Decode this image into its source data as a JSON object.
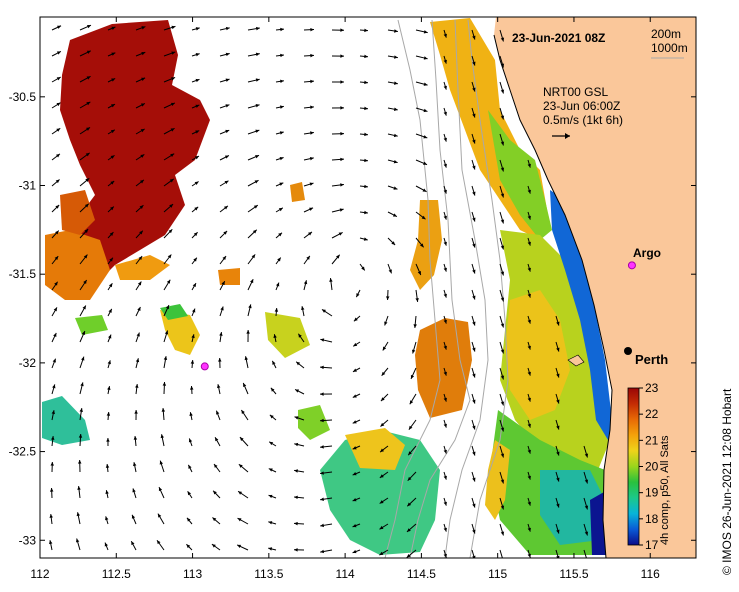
{
  "title": "23-Jun-2021 08Z",
  "depth_legend": [
    "200m",
    "1000m"
  ],
  "current_info": {
    "source": "NRT00 GSL",
    "time": "23-Jun 06:00Z",
    "scale": "0.5m/s (1kt 6h)"
  },
  "markers": [
    {
      "name": "Argo",
      "lon": 115.88,
      "lat": -31.45
    },
    {
      "name": "",
      "lon": 113.08,
      "lat": -32.02
    }
  ],
  "city": {
    "name": "Perth",
    "lon": 115.86,
    "lat": -31.95
  },
  "colorbar": {
    "title": "4h comp, p50, All Sats",
    "min": 17,
    "max": 23,
    "ticks": [
      "17",
      "18",
      "19",
      "20",
      "21",
      "22",
      "23"
    ],
    "stops": [
      "#0b0b8a",
      "#0a5ad6",
      "#07b4d8",
      "#1cc88a",
      "#29c13d",
      "#9ad51c",
      "#efd31a",
      "#f4a20b",
      "#e86a05",
      "#c42c04",
      "#9a0606"
    ]
  },
  "credit": "IMOS 26-Jun-2021 12:08 Hobart",
  "copyright_symbol": "©",
  "axes": {
    "lon_ticks": [
      "112",
      "112.5",
      "113",
      "113.5",
      "114",
      "114.5",
      "115",
      "115.5",
      "116"
    ],
    "lat_ticks": [
      "-30.5",
      "-31",
      "-31.5",
      "-32",
      "-32.5",
      "-33"
    ],
    "lon_range": [
      112,
      116.3
    ],
    "lat_range": [
      -33.1,
      -30.05
    ]
  },
  "colors": {
    "land": "#fac79a",
    "ocean_nodata": "#ffffff",
    "isobath": "#a8a8a8"
  }
}
